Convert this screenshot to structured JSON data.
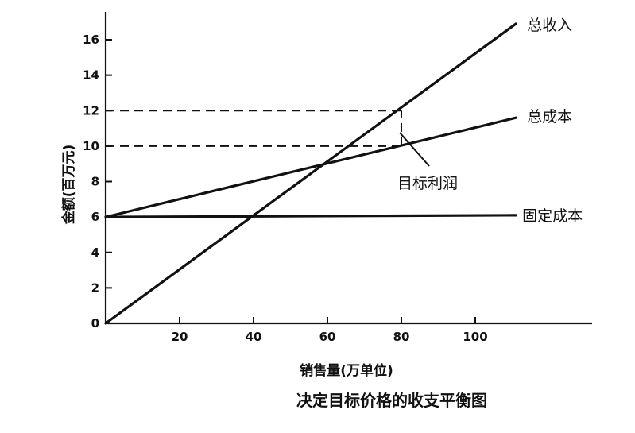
{
  "chart_data": {
    "type": "line",
    "title": "决定目标价格的收支平衡图",
    "xlabel": "销售量(万单位)",
    "ylabel": "金额(百万元)",
    "xlim": [
      0,
      112
    ],
    "ylim": [
      0,
      17
    ],
    "xticks": [
      20,
      40,
      60,
      80,
      100
    ],
    "yticks": [
      0,
      2,
      4,
      6,
      8,
      10,
      12,
      14,
      16
    ],
    "grid": false,
    "series": [
      {
        "name": "总收入",
        "x": [
          0,
          111
        ],
        "y": [
          0,
          16.9
        ]
      },
      {
        "name": "总成本",
        "x": [
          0,
          111
        ],
        "y": [
          6,
          11.6
        ]
      },
      {
        "name": "固定成本",
        "x": [
          0,
          111
        ],
        "y": [
          6,
          6.1
        ]
      }
    ],
    "reference_lines": [
      {
        "kind": "horizontal",
        "y": 12,
        "x_from": 0,
        "x_to": 80,
        "style": "dashed"
      },
      {
        "kind": "horizontal",
        "y": 10,
        "x_from": 0,
        "x_to": 80,
        "style": "dashed"
      },
      {
        "kind": "vertical",
        "x": 80,
        "y_from": 10,
        "y_to": 12,
        "style": "dashed"
      }
    ],
    "annotations": [
      {
        "text": "目标利润",
        "x": 80,
        "y": 11
      }
    ]
  }
}
